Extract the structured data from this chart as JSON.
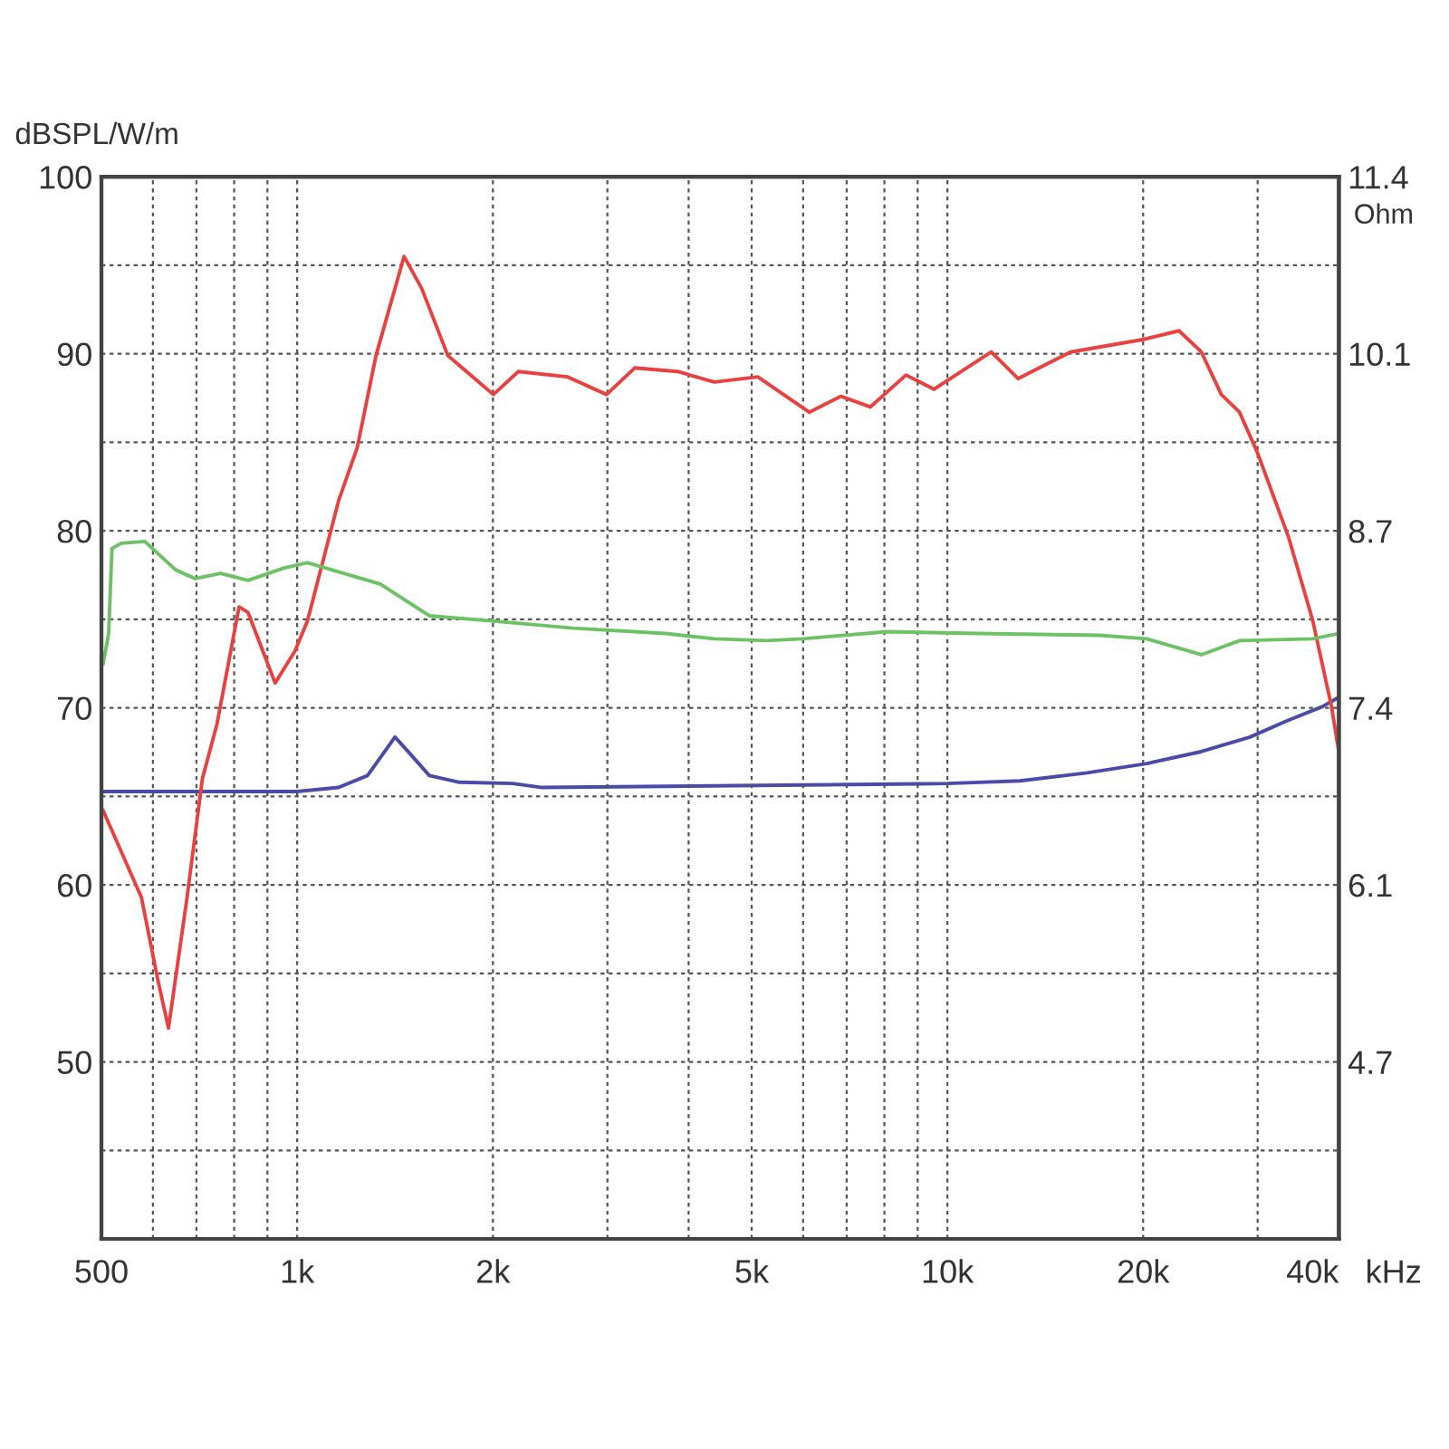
{
  "chart_data": {
    "type": "line",
    "ylabel": "dBSPL/W/m",
    "y2label": "Ohm",
    "log": "x",
    "grid": true,
    "line_style": "solid",
    "xlim": [
      500,
      40000
    ],
    "xticks": [
      500,
      {
        "value": 600,
        "label": null
      },
      {
        "value": 700,
        "label": null
      },
      {
        "value": 800,
        "label": null
      },
      {
        "value": 900,
        "label": null
      },
      {
        "value": 1000,
        "label": "1k"
      },
      {
        "value": 2000,
        "label": "2k"
      },
      {
        "value": 3000,
        "label": null
      },
      {
        "value": 4000,
        "label": null
      },
      {
        "value": 5000,
        "label": "5k"
      },
      {
        "value": 6000,
        "label": null
      },
      {
        "value": 7000,
        "label": null
      },
      {
        "value": 8000,
        "label": null
      },
      {
        "value": 9000,
        "label": null
      },
      {
        "value": 10000,
        "label": "10k"
      },
      {
        "value": 20000,
        "label": "20k"
      },
      {
        "value": 30000,
        "label": null
      },
      {
        "value": 40000,
        "label": "40k"
      }
    ],
    "xlabel": "kHz",
    "ylim": [
      40,
      100
    ],
    "yticks": [
      {
        "value": 40,
        "label": null
      },
      {
        "value": 45,
        "label": null
      },
      50,
      {
        "value": 55,
        "label": null
      },
      60,
      {
        "value": 65,
        "label": null
      },
      70,
      {
        "value": 75,
        "label": null
      },
      80,
      {
        "value": 85,
        "label": null
      },
      90,
      {
        "value": 95,
        "label": null
      },
      100
    ],
    "y2lim": [
      3.4,
      11.4
    ],
    "y2ticks": [
      {
        "value": 4.733,
        "label": "4.7"
      },
      {
        "value": 6.067,
        "label": "6.1"
      },
      7.4,
      {
        "value": 8.733,
        "label": "8.7"
      },
      {
        "value": 10.067,
        "label": "10.1"
      },
      11.4
    ],
    "series": [
      {
        "color": "#e8413f",
        "x": [
          503,
          576,
          610,
          634,
          676,
          715,
          753,
          814,
          840,
          925,
          992,
          1037,
          1158,
          1237,
          1322,
          1460,
          1554,
          1705,
          2003,
          2189,
          2602,
          2991,
          3304,
          3849,
          4381,
          5110,
          6130,
          6860,
          7616,
          8636,
          9533,
          11680,
          12850,
          15460,
          19950,
          22710,
          24580,
          26380,
          28140,
          29990,
          33500,
          36480,
          38960,
          40000
        ],
        "values": [
          64.2,
          59.3,
          54.7,
          51.9,
          59.1,
          66.0,
          69.1,
          75.7,
          75.4,
          71.4,
          73.2,
          74.9,
          81.7,
          84.7,
          89.9,
          95.5,
          93.7,
          89.9,
          87.7,
          89.0,
          88.7,
          87.7,
          89.2,
          89.0,
          88.4,
          88.7,
          86.7,
          87.6,
          87.0,
          88.8,
          88.0,
          90.1,
          88.6,
          90.1,
          90.8,
          91.3,
          90.1,
          87.7,
          86.7,
          84.4,
          79.6,
          74.9,
          70.1,
          67.5
        ]
      },
      {
        "color": "#6cc264",
        "x": [
          503,
          513,
          519,
          536,
          583,
          650,
          697,
          762,
          840,
          955,
          1037,
          1129,
          1342,
          1597,
          2009,
          2660,
          3685,
          4381,
          5280,
          5990,
          8080,
          11140,
          17120,
          20250,
          24580,
          28140,
          36480,
          40000
        ],
        "values": [
          72.5,
          74.2,
          79.0,
          79.3,
          79.4,
          77.8,
          77.3,
          77.6,
          77.2,
          77.9,
          78.2,
          77.8,
          77.0,
          75.2,
          74.9,
          74.5,
          74.2,
          73.9,
          73.8,
          73.9,
          74.3,
          74.2,
          74.1,
          73.9,
          73.0,
          73.8,
          73.9,
          74.2
        ]
      },
      {
        "color": "#4a4aa8",
        "axis": "y2",
        "x": [
          500,
          1000,
          1158,
          1283,
          1414,
          1494,
          1597,
          1771,
          2144,
          2380,
          10000,
          12930,
          16400,
          20260,
          24560,
          29200,
          33200,
          37760,
          40000
        ],
        "values": [
          6.77,
          6.77,
          6.8,
          6.89,
          7.18,
          7.05,
          6.89,
          6.84,
          6.83,
          6.8,
          6.83,
          6.85,
          6.91,
          6.98,
          7.07,
          7.18,
          7.3,
          7.41,
          7.48
        ]
      }
    ]
  }
}
